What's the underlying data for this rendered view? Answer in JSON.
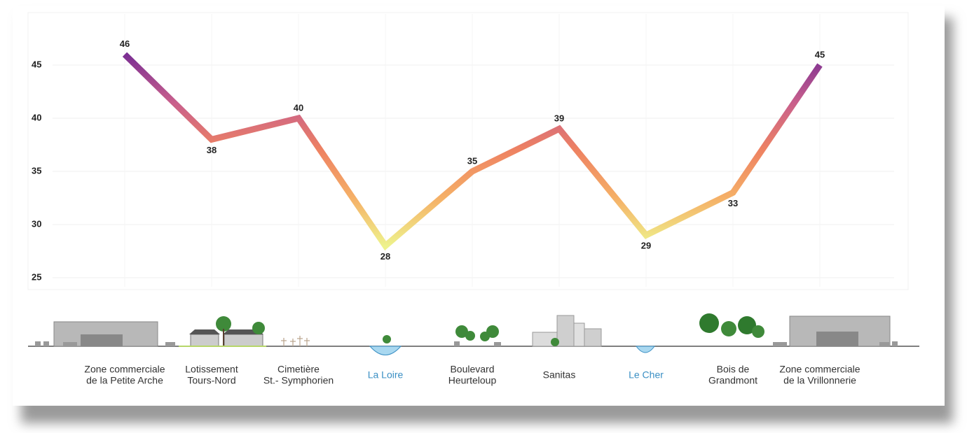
{
  "chart_data": {
    "type": "line",
    "categories": [
      [
        "Zone commerciale",
        "de la Petite Arche"
      ],
      [
        "Lotissement",
        "Tours-Nord"
      ],
      [
        "Cimetière",
        "St.- Symphorien"
      ],
      [
        "La Loire"
      ],
      [
        "Boulevard",
        "Heurteloup"
      ],
      [
        "Sanitas"
      ],
      [
        "Le Cher"
      ],
      [
        "Bois de",
        "Grandmont"
      ],
      [
        "Zone commerciale",
        "de la Vrillonnerie"
      ]
    ],
    "category_colors": [
      "#333333",
      "#333333",
      "#333333",
      "#3a8fc4",
      "#333333",
      "#333333",
      "#3a8fc4",
      "#333333",
      "#333333"
    ],
    "values": [
      46,
      38,
      40,
      28,
      35,
      39,
      29,
      33,
      45
    ],
    "ylim": [
      24,
      50
    ],
    "yticks": [
      25,
      30,
      35,
      40,
      45
    ],
    "grid": true,
    "gradient": [
      "#eef28c",
      "#f5b067",
      "#ee8262",
      "#c85f8c",
      "#7b2f93"
    ]
  }
}
